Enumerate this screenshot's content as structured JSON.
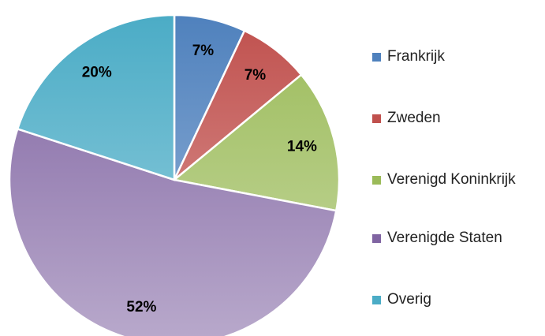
{
  "chart_data": {
    "type": "pie",
    "categories": [
      "Frankrijk",
      "Zweden",
      "Verenigd Koninkrijk",
      "Verenigde Staten",
      "Overig"
    ],
    "values": [
      7,
      7,
      14,
      52,
      20
    ],
    "value_labels": [
      "7%",
      "7%",
      "14%",
      "52%",
      "20%"
    ],
    "colors": [
      "#4f81bd",
      "#c0504d",
      "#9bbb59",
      "#8064a2",
      "#4bacc6"
    ],
    "legend": "right"
  }
}
